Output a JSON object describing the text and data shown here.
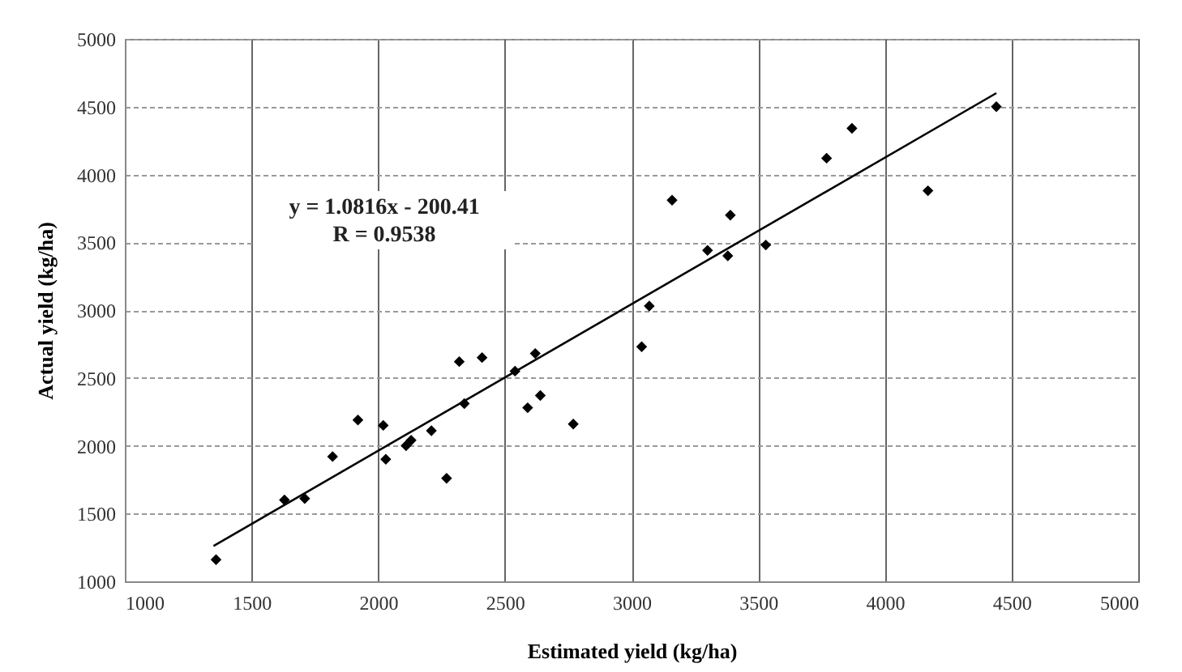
{
  "chart_data": {
    "type": "scatter",
    "xlabel": "Estimated yield (kg/ha)",
    "ylabel": "Actual yield (kg/ha)",
    "xlim": [
      1000,
      5000
    ],
    "xticks": [
      1000,
      1500,
      2000,
      2500,
      3000,
      3500,
      4000,
      4500,
      5000
    ],
    "ylim": [
      1000,
      5000
    ],
    "yticks": [
      1000,
      1500,
      2000,
      2500,
      3000,
      3500,
      4000,
      4500,
      5000
    ],
    "grid": true,
    "annotations": [
      "y = 1.0816x - 200.41",
      "R = 0.9538"
    ],
    "series": [
      {
        "color": "#000000",
        "marker": "diamond",
        "x": [
          1360,
          1630,
          1710,
          1820,
          1920,
          2020,
          2030,
          2110,
          2130,
          2210,
          2270,
          2320,
          2340,
          2410,
          2540,
          2590,
          2620,
          2640,
          2770,
          3040,
          3070,
          3160,
          3300,
          3380,
          3390,
          3530,
          3770,
          3870,
          4170,
          4440
        ],
        "values": [
          1160,
          1600,
          1610,
          1920,
          2190,
          2150,
          1900,
          2000,
          2040,
          2110,
          1760,
          2620,
          2310,
          2650,
          2550,
          2280,
          2680,
          2370,
          2160,
          2730,
          3030,
          3810,
          3440,
          3400,
          3700,
          3480,
          4120,
          4340,
          3880,
          4500
        ]
      },
      {
        "type": "line",
        "color": "#000000",
        "x": [
          1350,
          4440
        ],
        "values": [
          1260,
          4600
        ],
        "line_style": "solid"
      }
    ]
  }
}
